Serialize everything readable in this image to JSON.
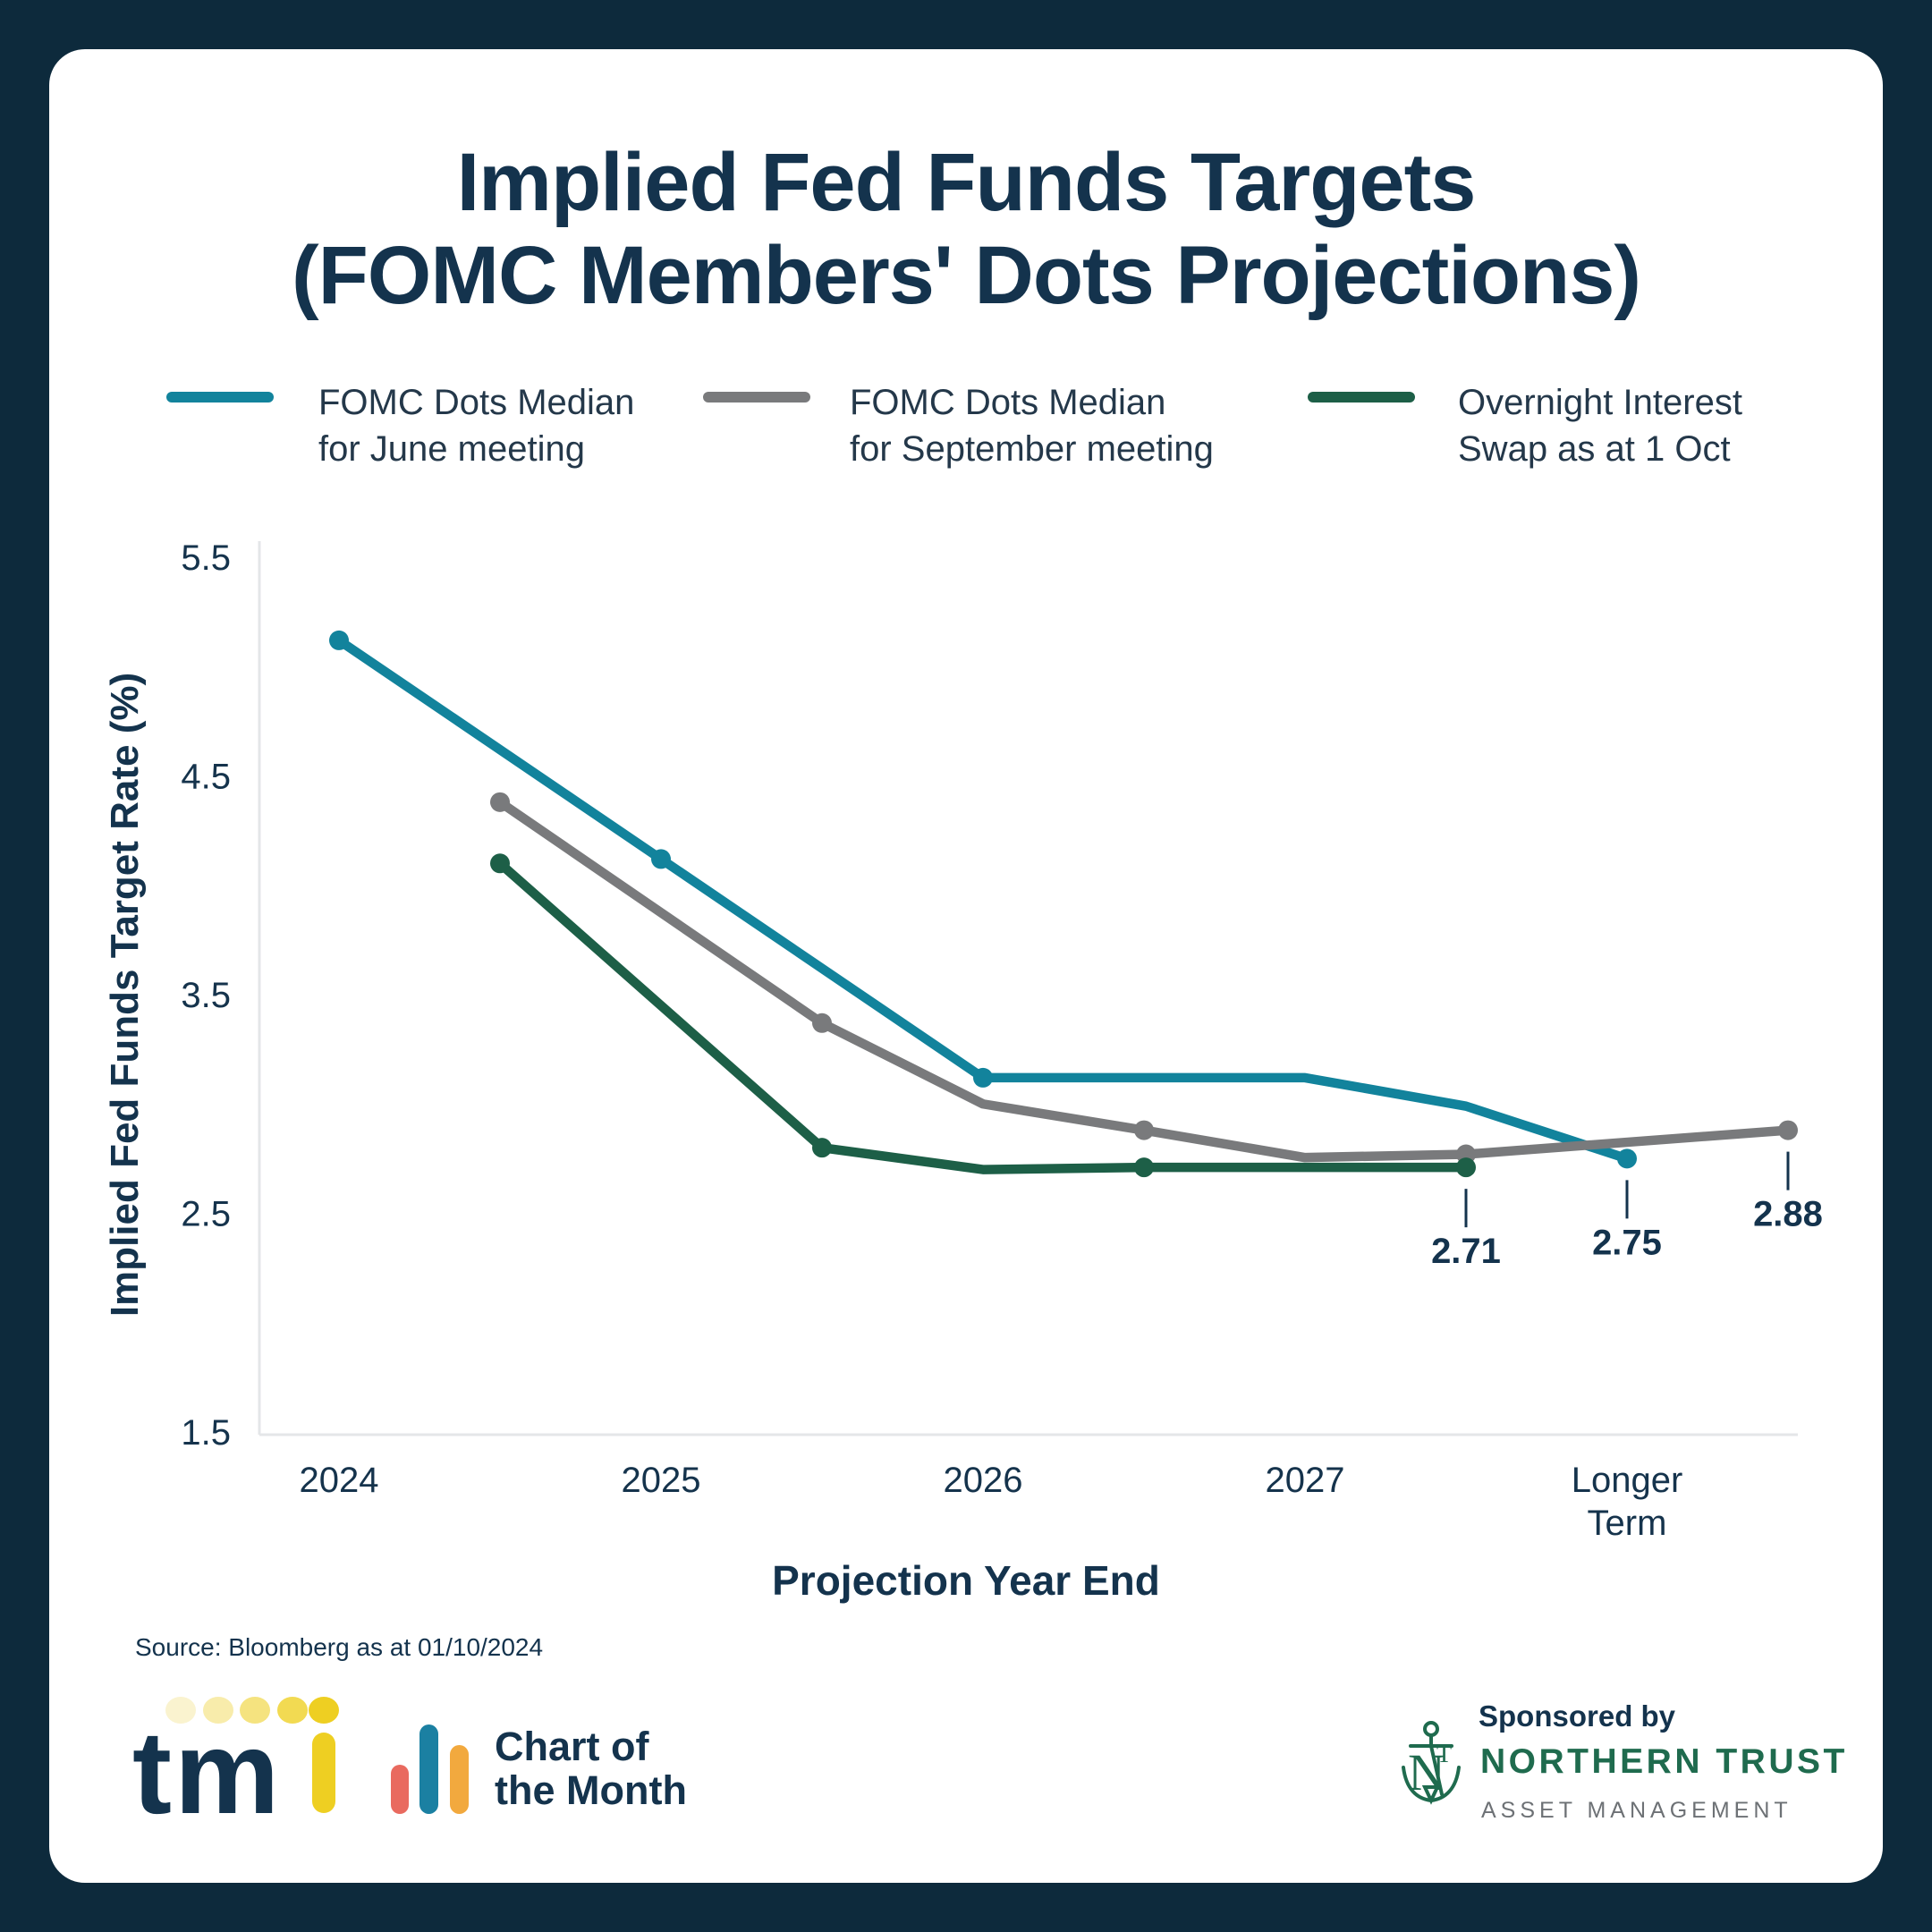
{
  "title": {
    "line1": "Implied Fed Funds Targets",
    "line2": "(FOMC Members' Dots Projections)"
  },
  "legend": {
    "items": [
      {
        "line1": "FOMC Dots Median",
        "line2": "for June meeting",
        "color": "#12839c"
      },
      {
        "line1": "FOMC Dots Median",
        "line2": "for September meeting",
        "color": "#797a7c"
      },
      {
        "line1": "Overnight Interest",
        "line2": "Swap as at 1 Oct",
        "color": "#1d5f47"
      }
    ]
  },
  "chart_data": {
    "type": "line",
    "title": "Implied Fed Funds Targets (FOMC Members' Dots Projections)",
    "xlabel": "Projection Year End",
    "ylabel": "Implied Fed Funds Target Rate (%)",
    "x_tick_labels": [
      [
        "2024"
      ],
      [
        "2025"
      ],
      [
        "2026"
      ],
      [
        "2027"
      ],
      [
        "Longer",
        "Term"
      ]
    ],
    "y_tick_labels": [
      "5.5",
      "4.5",
      "3.5",
      "2.5",
      "1.5"
    ],
    "y_ticks": [
      5.5,
      4.5,
      3.5,
      2.5,
      1.5
    ],
    "ylim": [
      1.5,
      5.5
    ],
    "grid": false,
    "legend_position": "top",
    "axis_color": "#e4e6e8",
    "annotation_color": "#14334d",
    "series": [
      {
        "name": "FOMC Dots Median for June meeting",
        "color": "#12839c",
        "points": [
          {
            "x": 0,
            "y": 5.12,
            "dot": true
          },
          {
            "x": 1,
            "y": 4.12,
            "dot": true
          },
          {
            "x": 2,
            "y": 3.12,
            "dot": true
          },
          {
            "x": 3,
            "y": 3.12
          },
          {
            "x": 3.5,
            "y": 2.99
          },
          {
            "x": 4,
            "y": 2.75,
            "dot": true
          }
        ]
      },
      {
        "name": "FOMC Dots Median for September meeting",
        "color": "#797a7c",
        "points": [
          {
            "x": 0.5,
            "y": 4.38,
            "dot": true
          },
          {
            "x": 1.5,
            "y": 3.37,
            "dot": true
          },
          {
            "x": 2,
            "y": 3.0
          },
          {
            "x": 2.5,
            "y": 2.88,
            "dot": true
          },
          {
            "x": 3,
            "y": 2.755
          },
          {
            "x": 3.5,
            "y": 2.77,
            "dot": true
          },
          {
            "x": 4.5,
            "y": 2.88,
            "dot": true
          }
        ]
      },
      {
        "name": "Overnight Interest Swap as at 1 Oct",
        "color": "#1d5f47",
        "points": [
          {
            "x": 0.5,
            "y": 4.1,
            "dot": true
          },
          {
            "x": 1.5,
            "y": 2.8,
            "dot": true
          },
          {
            "x": 2,
            "y": 2.7
          },
          {
            "x": 2.5,
            "y": 2.71,
            "dot": true
          },
          {
            "x": 3.5,
            "y": 2.71,
            "dot": true
          }
        ]
      }
    ],
    "annotations": [
      {
        "x": 3.5,
        "y": 2.71,
        "label": "2.71"
      },
      {
        "x": 4,
        "y": 2.75,
        "label": "2.75"
      },
      {
        "x": 4.5,
        "y": 2.88,
        "label": "2.88"
      }
    ]
  },
  "source": "Source: Bloomberg as at 01/10/2024",
  "footer": {
    "tmi": {
      "letters": "tm",
      "navy": "#14334d",
      "i_color": "#eecf22",
      "dot_colors": [
        "#faf3cf",
        "#f8ecab",
        "#f5e37f",
        "#f2da52",
        "#eecf22"
      ]
    },
    "chart_of_month": {
      "line1": "Chart of",
      "line2": "the Month",
      "bar_colors": [
        "#e96a5f",
        "#1b80a2",
        "#f2a93e"
      ]
    },
    "sponsor": {
      "label": "Sponsored by",
      "name": "NORTHERN TRUST",
      "sub": "ASSET MANAGEMENT",
      "green": "#1f6b4e",
      "gray": "#6d7175"
    }
  }
}
